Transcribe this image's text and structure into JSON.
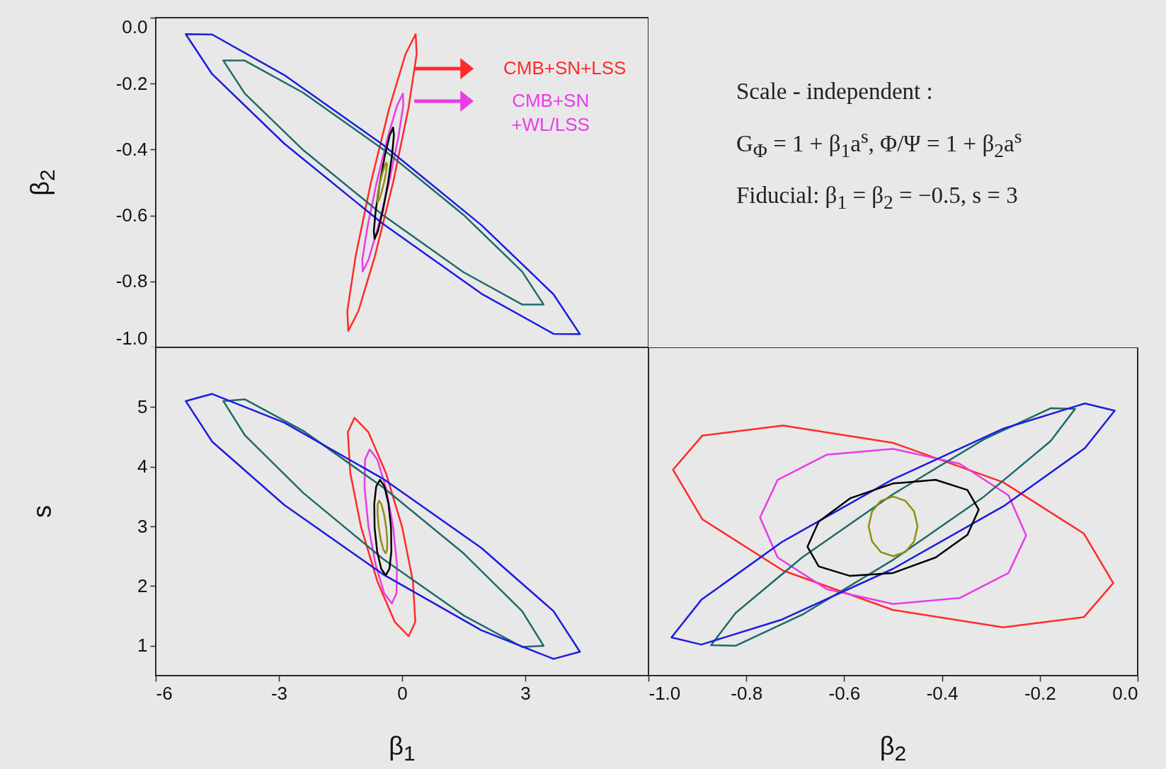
{
  "chart_data": [
    {
      "type": "line",
      "ylabel": "β$_{2}$",
      "xlim": [
        -6,
        6
      ],
      "ylim": [
        -1,
        0
      ],
      "xticks": [
        -6,
        -3,
        0,
        3,
        {
          "value": 6,
          "label": null
        }
      ],
      "yticks": [
        {
          "value": 0,
          "label": "0.0"
        },
        -0.2,
        -0.4,
        -0.6,
        -0.8,
        {
          "value": -1,
          "label": "-1.0"
        }
      ],
      "tick_labels": "y",
      "grid": false,
      "legend": "top right",
      "series": [
        {
          "name": "CMB+SN+LSS",
          "color": "#ff2a2a",
          "x": [
            -1.335,
            -1.31,
            -1.065,
            -0.666,
            -0.22,
            0.154,
            0.355,
            null,
            -1.335,
            -1.134,
            -0.76,
            -0.314,
            0.085,
            0.33,
            0.355
          ],
          "values": [
            -0.89,
            -0.95,
            -0.89,
            -0.725,
            -0.5,
            -0.275,
            -0.11,
            null,
            -0.89,
            -0.725,
            -0.5,
            -0.275,
            -0.11,
            -0.05,
            -0.11
          ]
        },
        {
          "name": "CMB+SN +WL/LSS",
          "color": "#e83ce8",
          "x": [
            -0.969,
            -0.96,
            -0.819,
            -0.585,
            -0.32,
            -0.095,
            0.029,
            null,
            -0.969,
            -0.845,
            -0.62,
            -0.355,
            -0.121,
            0.02,
            0.029
          ],
          "values": [
            -0.734,
            -0.77,
            -0.734,
            -0.635,
            -0.5,
            -0.365,
            -0.266,
            null,
            -0.734,
            -0.635,
            -0.5,
            -0.365,
            -0.266,
            -0.23,
            -0.266
          ]
        },
        {
          "color": "#1d6b6b",
          "x": [
            -4.355,
            -3.832,
            -2.405,
            -0.455,
            1.495,
            2.922,
            3.445,
            null,
            -4.355,
            -3.832,
            -2.405,
            -0.455,
            1.495,
            2.922,
            3.445
          ],
          "values": [
            -0.13,
            -0.13,
            -0.228,
            -0.4,
            -0.598,
            -0.77,
            -0.87,
            null,
            -0.13,
            -0.23,
            -0.402,
            -0.6,
            -0.772,
            -0.87,
            -0.87
          ]
        },
        {
          "color": "#1c1ce0",
          "x": [
            -5.27,
            -4.627,
            -2.87,
            -0.47,
            1.93,
            3.687,
            4.33,
            null,
            -5.27,
            -4.627,
            -2.87,
            -0.47,
            1.93,
            3.687,
            4.33
          ],
          "values": [
            -0.05,
            -0.051,
            -0.174,
            -0.385,
            -0.629,
            -0.839,
            -0.96,
            null,
            -0.05,
            -0.171,
            -0.382,
            -0.625,
            -0.837,
            -0.959,
            -0.96
          ]
        },
        {
          "color": "#000000",
          "x": [
            -0.69,
            -0.67,
            -0.59,
            -0.471,
            -0.345,
            -0.246,
            -0.2,
            null,
            -0.69,
            -0.644,
            -0.545,
            -0.42,
            -0.3,
            -0.22,
            -0.2
          ],
          "values": [
            -0.648,
            -0.671,
            -0.648,
            -0.586,
            -0.502,
            -0.418,
            -0.356,
            null,
            -0.648,
            -0.586,
            -0.502,
            -0.418,
            -0.356,
            -0.333,
            -0.356
          ]
        },
        {
          "color": "#8f8f10",
          "x": [
            -0.61,
            -0.6,
            -0.56,
            -0.502,
            -0.44,
            -0.392,
            -0.37,
            null,
            -0.61,
            -0.588,
            -0.54,
            -0.478,
            -0.42,
            -0.38,
            -0.37
          ],
          "values": [
            -0.552,
            -0.56,
            -0.552,
            -0.53,
            -0.5,
            -0.47,
            -0.448,
            null,
            -0.552,
            -0.53,
            -0.5,
            -0.47,
            -0.448,
            -0.44,
            -0.448
          ]
        }
      ]
    },
    {
      "type": "other",
      "annotations": [
        "Scale - independent :",
        "G$_{Φ}$ = 1 + β$_{1}$a$^{s}$, Φ/Ψ = 1 + β$_{2}$a$^{s}$",
        "Fiducial:  β$_{1}$ = β$_{2}$ = −0.5, s = 3"
      ]
    },
    {
      "type": "line",
      "xlabel": "β$_{1}$",
      "ylabel": "s",
      "xlim": [
        -6,
        6
      ],
      "ylim": [
        0.5,
        6
      ],
      "xticks": [
        -6,
        -3,
        0,
        3,
        {
          "value": 6,
          "label": null
        }
      ],
      "yticks": [
        1,
        2,
        3,
        4,
        5
      ],
      "grid": false,
      "legend": false,
      "series": [
        {
          "color": "#ff2a2a",
          "x": [
            -1.322,
            -1.16,
            -0.822,
            -0.397,
            0.0,
            0.263,
            0.322,
            null,
            -1.322,
            -1.263,
            -1.0,
            -0.603,
            -0.178,
            0.16,
            0.322
          ],
          "values": [
            4.58,
            4.82,
            4.58,
            3.9,
            2.99,
            2.08,
            1.4,
            null,
            4.58,
            3.9,
            2.99,
            2.08,
            1.4,
            1.16,
            1.4
          ]
        },
        {
          "color": "#e83ce8",
          "x": [
            -0.915,
            -0.904,
            -0.79,
            -0.604,
            -0.395,
            -0.22,
            -0.125,
            null,
            -0.915,
            -0.82,
            -0.645,
            -0.436,
            -0.25,
            -0.136,
            -0.125
          ],
          "values": [
            3.65,
            4.12,
            4.29,
            4.12,
            3.65,
            3.0,
            2.36,
            null,
            3.65,
            3.0,
            2.36,
            1.88,
            1.71,
            1.88,
            2.36
          ]
        },
        {
          "color": "#1d6b6b",
          "x": [
            -4.355,
            -3.832,
            -2.405,
            -0.455,
            1.495,
            2.922,
            3.445,
            null,
            -4.355,
            -3.832,
            -2.405,
            -0.455,
            1.495,
            2.922,
            3.445
          ],
          "values": [
            5.1,
            5.13,
            4.6,
            3.65,
            2.55,
            1.58,
            1.0,
            null,
            5.1,
            4.53,
            3.56,
            2.45,
            1.51,
            0.98,
            1.0
          ]
        },
        {
          "color": "#1c1ce0",
          "x": [
            -5.27,
            -4.627,
            -2.87,
            -0.47,
            1.93,
            3.687,
            4.33,
            null,
            -5.27,
            -4.627,
            -2.87,
            -0.47,
            1.93,
            3.687,
            4.33
          ],
          "values": [
            5.1,
            5.22,
            4.74,
            3.8,
            2.64,
            1.58,
            0.9,
            null,
            5.1,
            4.42,
            3.36,
            2.2,
            1.26,
            0.78,
            0.9
          ]
        },
        {
          "color": "#000000",
          "x": [
            -0.678,
            -0.631,
            -0.54,
            -0.431,
            -0.332,
            -0.27,
            -0.262,
            null,
            -0.678,
            -0.67,
            -0.608,
            -0.509,
            -0.4,
            -0.309,
            -0.262
          ],
          "values": [
            3.38,
            3.67,
            3.78,
            3.67,
            3.38,
            2.98,
            2.58,
            null,
            3.38,
            2.98,
            2.58,
            2.29,
            2.18,
            2.29,
            2.58
          ]
        },
        {
          "color": "#8f8f10",
          "x": [
            -0.598,
            -0.594,
            -0.56,
            -0.504,
            -0.442,
            -0.39,
            -0.362,
            null,
            -0.598,
            -0.57,
            -0.518,
            -0.456,
            -0.4,
            -0.366,
            -0.362
          ],
          "values": [
            3.21,
            3.37,
            3.43,
            3.37,
            3.21,
            2.99,
            2.77,
            null,
            3.21,
            2.99,
            2.77,
            2.61,
            2.55,
            2.61,
            2.77
          ]
        }
      ]
    },
    {
      "type": "line",
      "xlabel": "β$_{2}$",
      "xlim": [
        -1,
        0
      ],
      "ylim": [
        0.5,
        6
      ],
      "xticks": [
        {
          "value": -1,
          "label": "-1.0"
        },
        -0.8,
        -0.6,
        -0.4,
        -0.2,
        {
          "value": 0,
          "label": "0.0"
        }
      ],
      "yticks": [
        1,
        2,
        3,
        4,
        5
      ],
      "tick_labels": "x",
      "grid": false,
      "legend": false,
      "series": [
        {
          "color": "#ff2a2a",
          "x": [
            -0.95,
            -0.89,
            -0.725,
            -0.5,
            -0.275,
            -0.11,
            -0.05,
            null,
            -0.95,
            -0.89,
            -0.725,
            -0.5,
            -0.275,
            -0.11,
            -0.05
          ],
          "values": [
            3.95,
            4.52,
            4.69,
            4.4,
            3.74,
            2.88,
            2.05,
            null,
            3.95,
            3.12,
            2.26,
            1.6,
            1.31,
            1.48,
            2.05
          ]
        },
        {
          "color": "#e83ce8",
          "x": [
            -0.772,
            -0.736,
            -0.636,
            -0.5,
            -0.364,
            -0.264,
            -0.228,
            null,
            -0.772,
            -0.736,
            -0.636,
            -0.5,
            -0.364,
            -0.264,
            -0.228
          ],
          "values": [
            3.15,
            3.78,
            4.2,
            4.3,
            4.05,
            3.52,
            2.85,
            null,
            3.15,
            2.48,
            1.95,
            1.7,
            1.8,
            2.22,
            2.85
          ]
        },
        {
          "color": "#1d6b6b",
          "x": [
            -0.872,
            -0.822,
            -0.686,
            -0.5,
            -0.314,
            -0.178,
            -0.128,
            null,
            -0.872,
            -0.822,
            -0.686,
            -0.5,
            -0.314,
            -0.178,
            -0.128
          ],
          "values": [
            1.01,
            1.55,
            2.48,
            3.54,
            4.46,
            4.98,
            4.97,
            null,
            1.01,
            1.0,
            1.52,
            2.44,
            3.5,
            4.43,
            4.97
          ]
        },
        {
          "color": "#1c1ce0",
          "x": [
            -0.953,
            -0.892,
            -0.727,
            -0.5,
            -0.274,
            -0.108,
            -0.047,
            null,
            -0.953,
            -0.892,
            -0.727,
            -0.5,
            -0.274,
            -0.108,
            -0.047
          ],
          "values": [
            1.14,
            1.77,
            2.74,
            3.79,
            4.64,
            5.06,
            4.94,
            null,
            1.14,
            1.02,
            1.44,
            2.29,
            3.34,
            4.31,
            4.94
          ]
        },
        {
          "color": "#000000",
          "x": [
            -0.675,
            -0.652,
            -0.588,
            -0.5,
            -0.413,
            -0.348,
            -0.325,
            null,
            -0.675,
            -0.652,
            -0.588,
            -0.5,
            -0.413,
            -0.348,
            -0.325
          ],
          "values": [
            2.66,
            3.08,
            3.47,
            3.72,
            3.78,
            3.61,
            3.28,
            null,
            2.66,
            2.33,
            2.17,
            2.22,
            2.48,
            2.86,
            3.28
          ]
        },
        {
          "color": "#8f8f10",
          "x": [
            -0.55,
            -0.543,
            -0.525,
            -0.5,
            -0.475,
            -0.457,
            -0.45,
            null,
            -0.55,
            -0.543,
            -0.525,
            -0.5,
            -0.475,
            -0.457,
            -0.45
          ],
          "values": [
            3.0,
            3.25,
            3.43,
            3.5,
            3.43,
            3.25,
            3.0,
            null,
            3.0,
            2.75,
            2.57,
            2.5,
            2.57,
            2.75,
            3.0
          ]
        }
      ]
    }
  ]
}
